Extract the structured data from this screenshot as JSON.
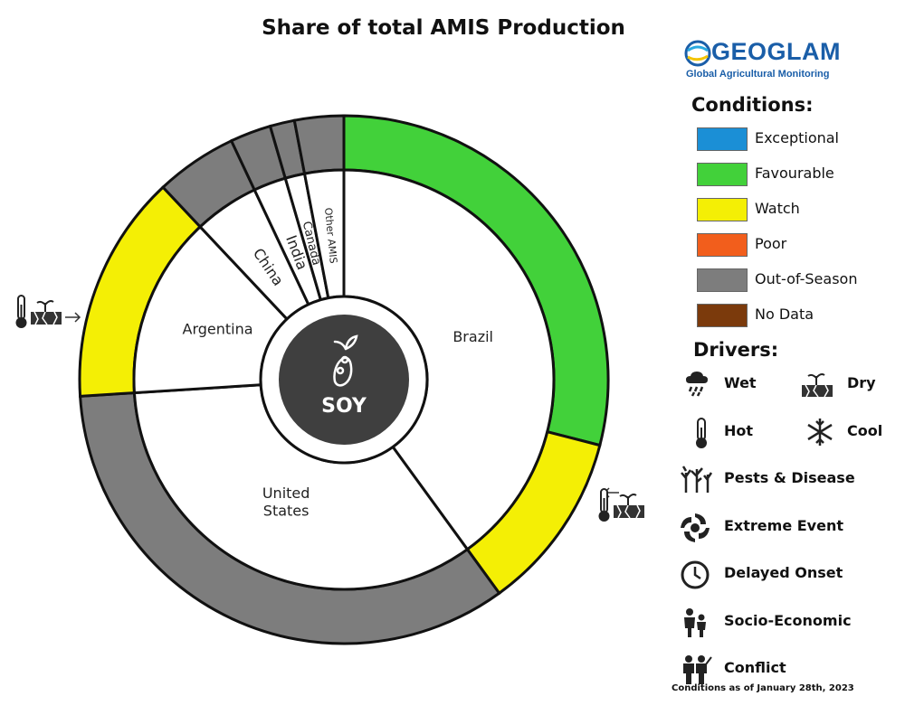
{
  "title": "Share of total AMIS Production",
  "logo": {
    "name": "GEOGLAM",
    "tagline": "Global Agricultural Monitoring"
  },
  "center_label": "SOY",
  "colors": {
    "Exceptional": "#1b8fd6",
    "Favourable": "#42d13a",
    "Watch": "#f4ef05",
    "Poor": "#f25e1c",
    "Out-of-Season": "#7d7d7d",
    "No Data": "#7b3a0c"
  },
  "chart_data": {
    "type": "pie",
    "subtype": "nested-donut",
    "title": "Share of total AMIS Production",
    "countries": [
      {
        "name": "Brazil",
        "share": 40.0
      },
      {
        "name": "United States",
        "share": 34.0
      },
      {
        "name": "Argentina",
        "share": 14.0
      },
      {
        "name": "China",
        "share": 5.0
      },
      {
        "name": "India",
        "share": 2.5
      },
      {
        "name": "Canada",
        "share": 1.5
      },
      {
        "name": "Other AMIS",
        "share": 3.0
      }
    ],
    "outer_ring": [
      {
        "country": "Brazil",
        "condition": "Favourable",
        "share": 29.0
      },
      {
        "country": "Brazil",
        "condition": "Watch",
        "share": 11.0,
        "drivers": [
          "Hot",
          "Dry"
        ]
      },
      {
        "country": "United States",
        "condition": "Out-of-Season",
        "share": 34.0
      },
      {
        "country": "Argentina",
        "condition": "Watch",
        "share": 14.0,
        "drivers": [
          "Hot",
          "Dry"
        ]
      },
      {
        "country": "China",
        "condition": "Out-of-Season",
        "share": 5.0
      },
      {
        "country": "India",
        "condition": "Out-of-Season",
        "share": 2.5
      },
      {
        "country": "Canada",
        "condition": "Out-of-Season",
        "share": 1.5
      },
      {
        "country": "Other AMIS",
        "condition": "Out-of-Season",
        "share": 3.0
      }
    ],
    "legend": {
      "conditions_title": "Conditions:",
      "conditions": [
        "Exceptional",
        "Favourable",
        "Watch",
        "Poor",
        "Out-of-Season",
        "No Data"
      ],
      "drivers_title": "Drivers:",
      "drivers": [
        {
          "label": "Wet",
          "icon": "cloud-rain-icon"
        },
        {
          "label": "Dry",
          "icon": "cracked-soil-icon"
        },
        {
          "label": "Hot",
          "icon": "thermometer-icon"
        },
        {
          "label": "Cool",
          "icon": "snowflake-icon"
        },
        {
          "label": "Pests & Disease",
          "icon": "bare-trees-icon"
        },
        {
          "label": "Extreme Event",
          "icon": "hurricane-icon"
        },
        {
          "label": "Delayed Onset",
          "icon": "clock-icon"
        },
        {
          "label": "Socio-Economic",
          "icon": "people-icon"
        },
        {
          "label": "Conflict",
          "icon": "soldiers-icon"
        }
      ]
    }
  },
  "footnote": "Conditions as of January 28th, 2023"
}
